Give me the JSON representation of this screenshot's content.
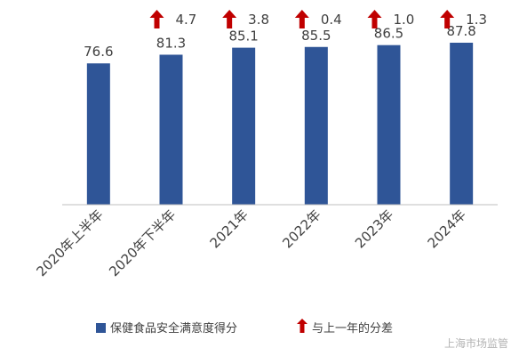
{
  "chart_data": {
    "type": "bar",
    "categories": [
      "2020年上半年",
      "2020年下半年",
      "2021年",
      "2022年",
      "2023年",
      "2024年"
    ],
    "series": [
      {
        "name": "保健食品安全满意度得分",
        "values": [
          76.6,
          81.3,
          85.1,
          85.5,
          86.5,
          87.8
        ]
      }
    ],
    "differences": [
      null,
      4.7,
      3.8,
      0.4,
      1.0,
      1.3
    ],
    "differences_label": "与上一年的分差",
    "ylim": [
      0,
      90
    ],
    "grid": false,
    "legend_position": "bottom",
    "colors": {
      "bar": "#2F5597",
      "arrow": "#C00000",
      "text": "#404040",
      "axis": "#BFBFBF"
    },
    "icons": {
      "difference_marker": "red-up-arrow-icon"
    }
  },
  "watermark": "上海市场监管"
}
